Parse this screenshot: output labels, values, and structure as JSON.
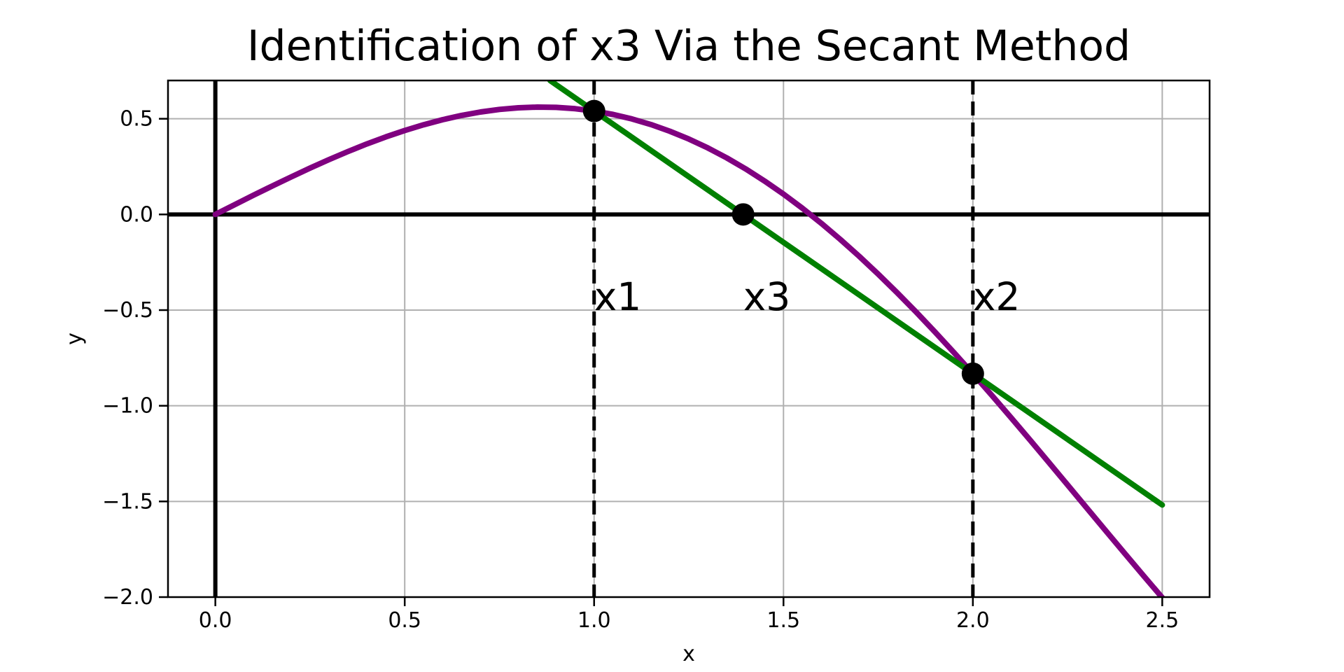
{
  "figure": {
    "background": "#ffffff"
  },
  "chart_data": {
    "type": "line",
    "title": "Identification of x3 Via the Secant Method",
    "xlabel": "x",
    "ylabel": "y",
    "xlim": [
      -0.125,
      2.625
    ],
    "ylim": [
      -2.0,
      0.7
    ],
    "grid": true,
    "grid_color": "#b0b0b0",
    "axis_line_color": "#000000",
    "axhline_y": 0,
    "axvline_x": 0,
    "xticks": {
      "values": [
        0.0,
        0.5,
        1.0,
        1.5,
        2.0,
        2.5
      ],
      "labels": [
        "0.0",
        "0.5",
        "1.0",
        "1.5",
        "2.0",
        "2.5"
      ]
    },
    "yticks": {
      "values": [
        0.5,
        0.0,
        -0.5,
        -1.0,
        -1.5,
        -2.0
      ],
      "labels": [
        "0.5",
        "0.0",
        "−0.5",
        "−1.0",
        "−1.5",
        "−2.0"
      ]
    },
    "series": [
      {
        "name": "function-curve",
        "color": "#800080",
        "x": [
          0.0,
          0.05,
          0.1,
          0.15,
          0.2,
          0.25,
          0.3,
          0.35,
          0.4,
          0.45,
          0.5,
          0.55,
          0.6,
          0.65,
          0.7,
          0.75,
          0.8,
          0.85,
          0.9,
          0.95,
          1.0,
          1.05,
          1.1,
          1.15,
          1.2,
          1.25,
          1.3,
          1.35,
          1.4,
          1.45,
          1.5,
          1.55,
          1.6,
          1.65,
          1.7,
          1.75,
          1.8,
          1.85,
          1.9,
          1.95,
          2.0,
          2.05,
          2.1,
          2.15,
          2.2,
          2.25,
          2.3,
          2.35,
          2.4,
          2.45,
          2.5
        ],
        "y": [
          0.0,
          0.0499,
          0.0995,
          0.1483,
          0.196,
          0.2422,
          0.2866,
          0.3288,
          0.3684,
          0.4052,
          0.4388,
          0.4689,
          0.4952,
          0.5175,
          0.5354,
          0.5488,
          0.5574,
          0.561,
          0.5594,
          0.5526,
          0.5403,
          0.5224,
          0.499,
          0.4698,
          0.4348,
          0.3942,
          0.3477,
          0.2957,
          0.238,
          0.1747,
          0.1061,
          0.0322,
          -0.0467,
          -0.1306,
          -0.219,
          -0.3119,
          -0.409,
          -0.5098,
          -0.6143,
          -0.7219,
          -0.8323,
          -0.9452,
          -1.0602,
          -1.1768,
          -1.2947,
          -1.4134,
          -1.5324,
          -1.6514,
          -1.7697,
          -1.8871,
          -2.0029
        ]
      },
      {
        "name": "secant-line",
        "color": "#008000",
        "x": [
          0.88365,
          2.5
        ],
        "y": [
          0.7,
          -1.51859
        ]
      }
    ],
    "points": [
      {
        "x": 1.0,
        "y": 0.5403
      },
      {
        "x": 1.3936,
        "y": 0.0
      },
      {
        "x": 2.0,
        "y": -0.8323
      }
    ],
    "point_color": "#000000",
    "vlines": [
      {
        "x": 1.0,
        "style": "dashed",
        "color": "#000000"
      },
      {
        "x": 2.0,
        "style": "dashed",
        "color": "#000000"
      }
    ],
    "annotations": [
      {
        "text": "x1",
        "x": 1.0,
        "y": -0.5
      },
      {
        "text": "x3",
        "x": 1.3936,
        "y": -0.5
      },
      {
        "text": "x2",
        "x": 2.0,
        "y": -0.5
      }
    ]
  }
}
